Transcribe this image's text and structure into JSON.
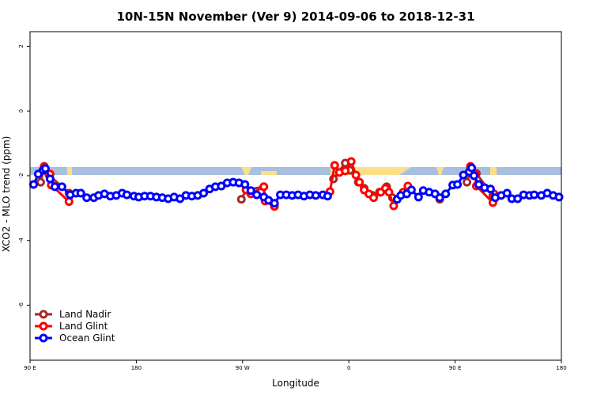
{
  "chart_data": {
    "type": "line",
    "title": "10N-15N November (Ver 9)   2014-09-06 to 2018-12-31",
    "x_label": "Longitude",
    "y_label": "XCO2 - MLO trend (ppm)",
    "xlim": [
      90,
      540
    ],
    "ylim": [
      -7.7,
      2.45
    ],
    "xticks": [
      {
        "value": 90,
        "label": "90 E"
      },
      {
        "value": 180,
        "label": "180"
      },
      {
        "value": 270,
        "label": "90 W"
      },
      {
        "value": 360,
        "label": "0"
      },
      {
        "value": 450,
        "label": "90 E"
      },
      {
        "value": 540,
        "label": "180"
      }
    ],
    "yticks": [
      -6,
      -4,
      -2,
      0,
      2
    ],
    "legend": "bottom-left",
    "series": [
      {
        "name": "Land Nadir",
        "color": "#a52a2a",
        "x": [
          99,
          102,
          106,
          123,
          null,
          269,
          273,
          288,
          289,
          null,
          347,
          357,
          361,
          368,
          373,
          380,
          386,
          392,
          397,
          409,
          null,
          437,
          null,
          460,
          464,
          468,
          482
        ],
        "values": [
          -2.2,
          -1.71,
          -1.98,
          -2.54,
          null,
          -2.73,
          -2.44,
          -2.34,
          -2.71,
          null,
          -2.1,
          -1.61,
          -1.83,
          -2.2,
          -2.39,
          -2.61,
          -2.51,
          -2.34,
          -2.68,
          -2.56,
          null,
          -2.73,
          null,
          -2.2,
          -1.76,
          -1.93,
          -2.61
        ]
      },
      {
        "name": "Land Glint",
        "color": "#ff0000",
        "x": [
          102,
          107,
          108,
          123,
          null,
          273,
          277,
          288,
          289,
          297,
          null,
          344,
          348,
          352,
          357,
          362,
          366,
          369,
          373,
          377,
          381,
          387,
          391,
          394,
          398,
          406,
          410,
          null,
          463,
          467,
          468,
          482,
          483
        ],
        "values": [
          -1.73,
          -1.95,
          -2.29,
          -2.8,
          null,
          -2.44,
          -2.56,
          -2.34,
          -2.78,
          -2.95,
          null,
          -2.49,
          -1.68,
          -1.9,
          -1.85,
          -1.56,
          -1.98,
          -2.2,
          -2.44,
          -2.56,
          -2.68,
          -2.51,
          -2.39,
          -2.51,
          -2.93,
          -2.51,
          -2.32,
          null,
          -1.71,
          -1.95,
          -2.32,
          -2.83,
          -2.56
        ]
      },
      {
        "name": "Ocean Glint",
        "color": "#0000ff",
        "x": [
          93,
          97,
          101,
          103,
          107,
          111,
          117,
          124,
          129,
          133,
          138,
          144,
          148,
          153,
          158,
          163,
          168,
          172,
          178,
          182,
          187,
          192,
          197,
          202,
          207,
          212,
          217,
          222,
          227,
          232,
          237,
          242,
          247,
          252,
          257,
          262,
          267,
          272,
          277,
          282,
          288,
          292,
          297,
          302,
          307,
          312,
          317,
          322,
          327,
          332,
          338,
          342,
          null,
          401,
          404,
          409,
          413,
          419,
          423,
          428,
          433,
          437,
          442,
          448,
          452,
          457,
          462,
          464,
          466,
          470,
          475,
          480,
          484,
          489,
          494,
          498,
          503,
          508,
          513,
          517,
          523,
          528,
          533,
          538
        ],
        "values": [
          -2.27,
          -1.95,
          -1.83,
          -1.78,
          -2.1,
          -2.34,
          -2.34,
          -2.59,
          -2.54,
          -2.54,
          -2.68,
          -2.68,
          -2.61,
          -2.56,
          -2.63,
          -2.61,
          -2.54,
          -2.59,
          -2.63,
          -2.66,
          -2.63,
          -2.63,
          -2.66,
          -2.68,
          -2.71,
          -2.66,
          -2.71,
          -2.61,
          -2.63,
          -2.61,
          -2.54,
          -2.41,
          -2.34,
          -2.32,
          -2.22,
          -2.2,
          -2.22,
          -2.27,
          -2.46,
          -2.59,
          -2.66,
          -2.76,
          -2.85,
          -2.59,
          -2.59,
          -2.61,
          -2.59,
          -2.63,
          -2.59,
          -2.61,
          -2.59,
          -2.63,
          null,
          -2.73,
          -2.61,
          -2.56,
          -2.44,
          -2.66,
          -2.46,
          -2.51,
          -2.56,
          -2.68,
          -2.56,
          -2.29,
          -2.27,
          -1.98,
          -1.88,
          -1.76,
          -2.0,
          -2.27,
          -2.37,
          -2.41,
          -2.68,
          -2.61,
          -2.54,
          -2.71,
          -2.71,
          -2.59,
          -2.61,
          -2.59,
          -2.61,
          -2.54,
          -2.61,
          -2.66
        ]
      }
    ]
  }
}
